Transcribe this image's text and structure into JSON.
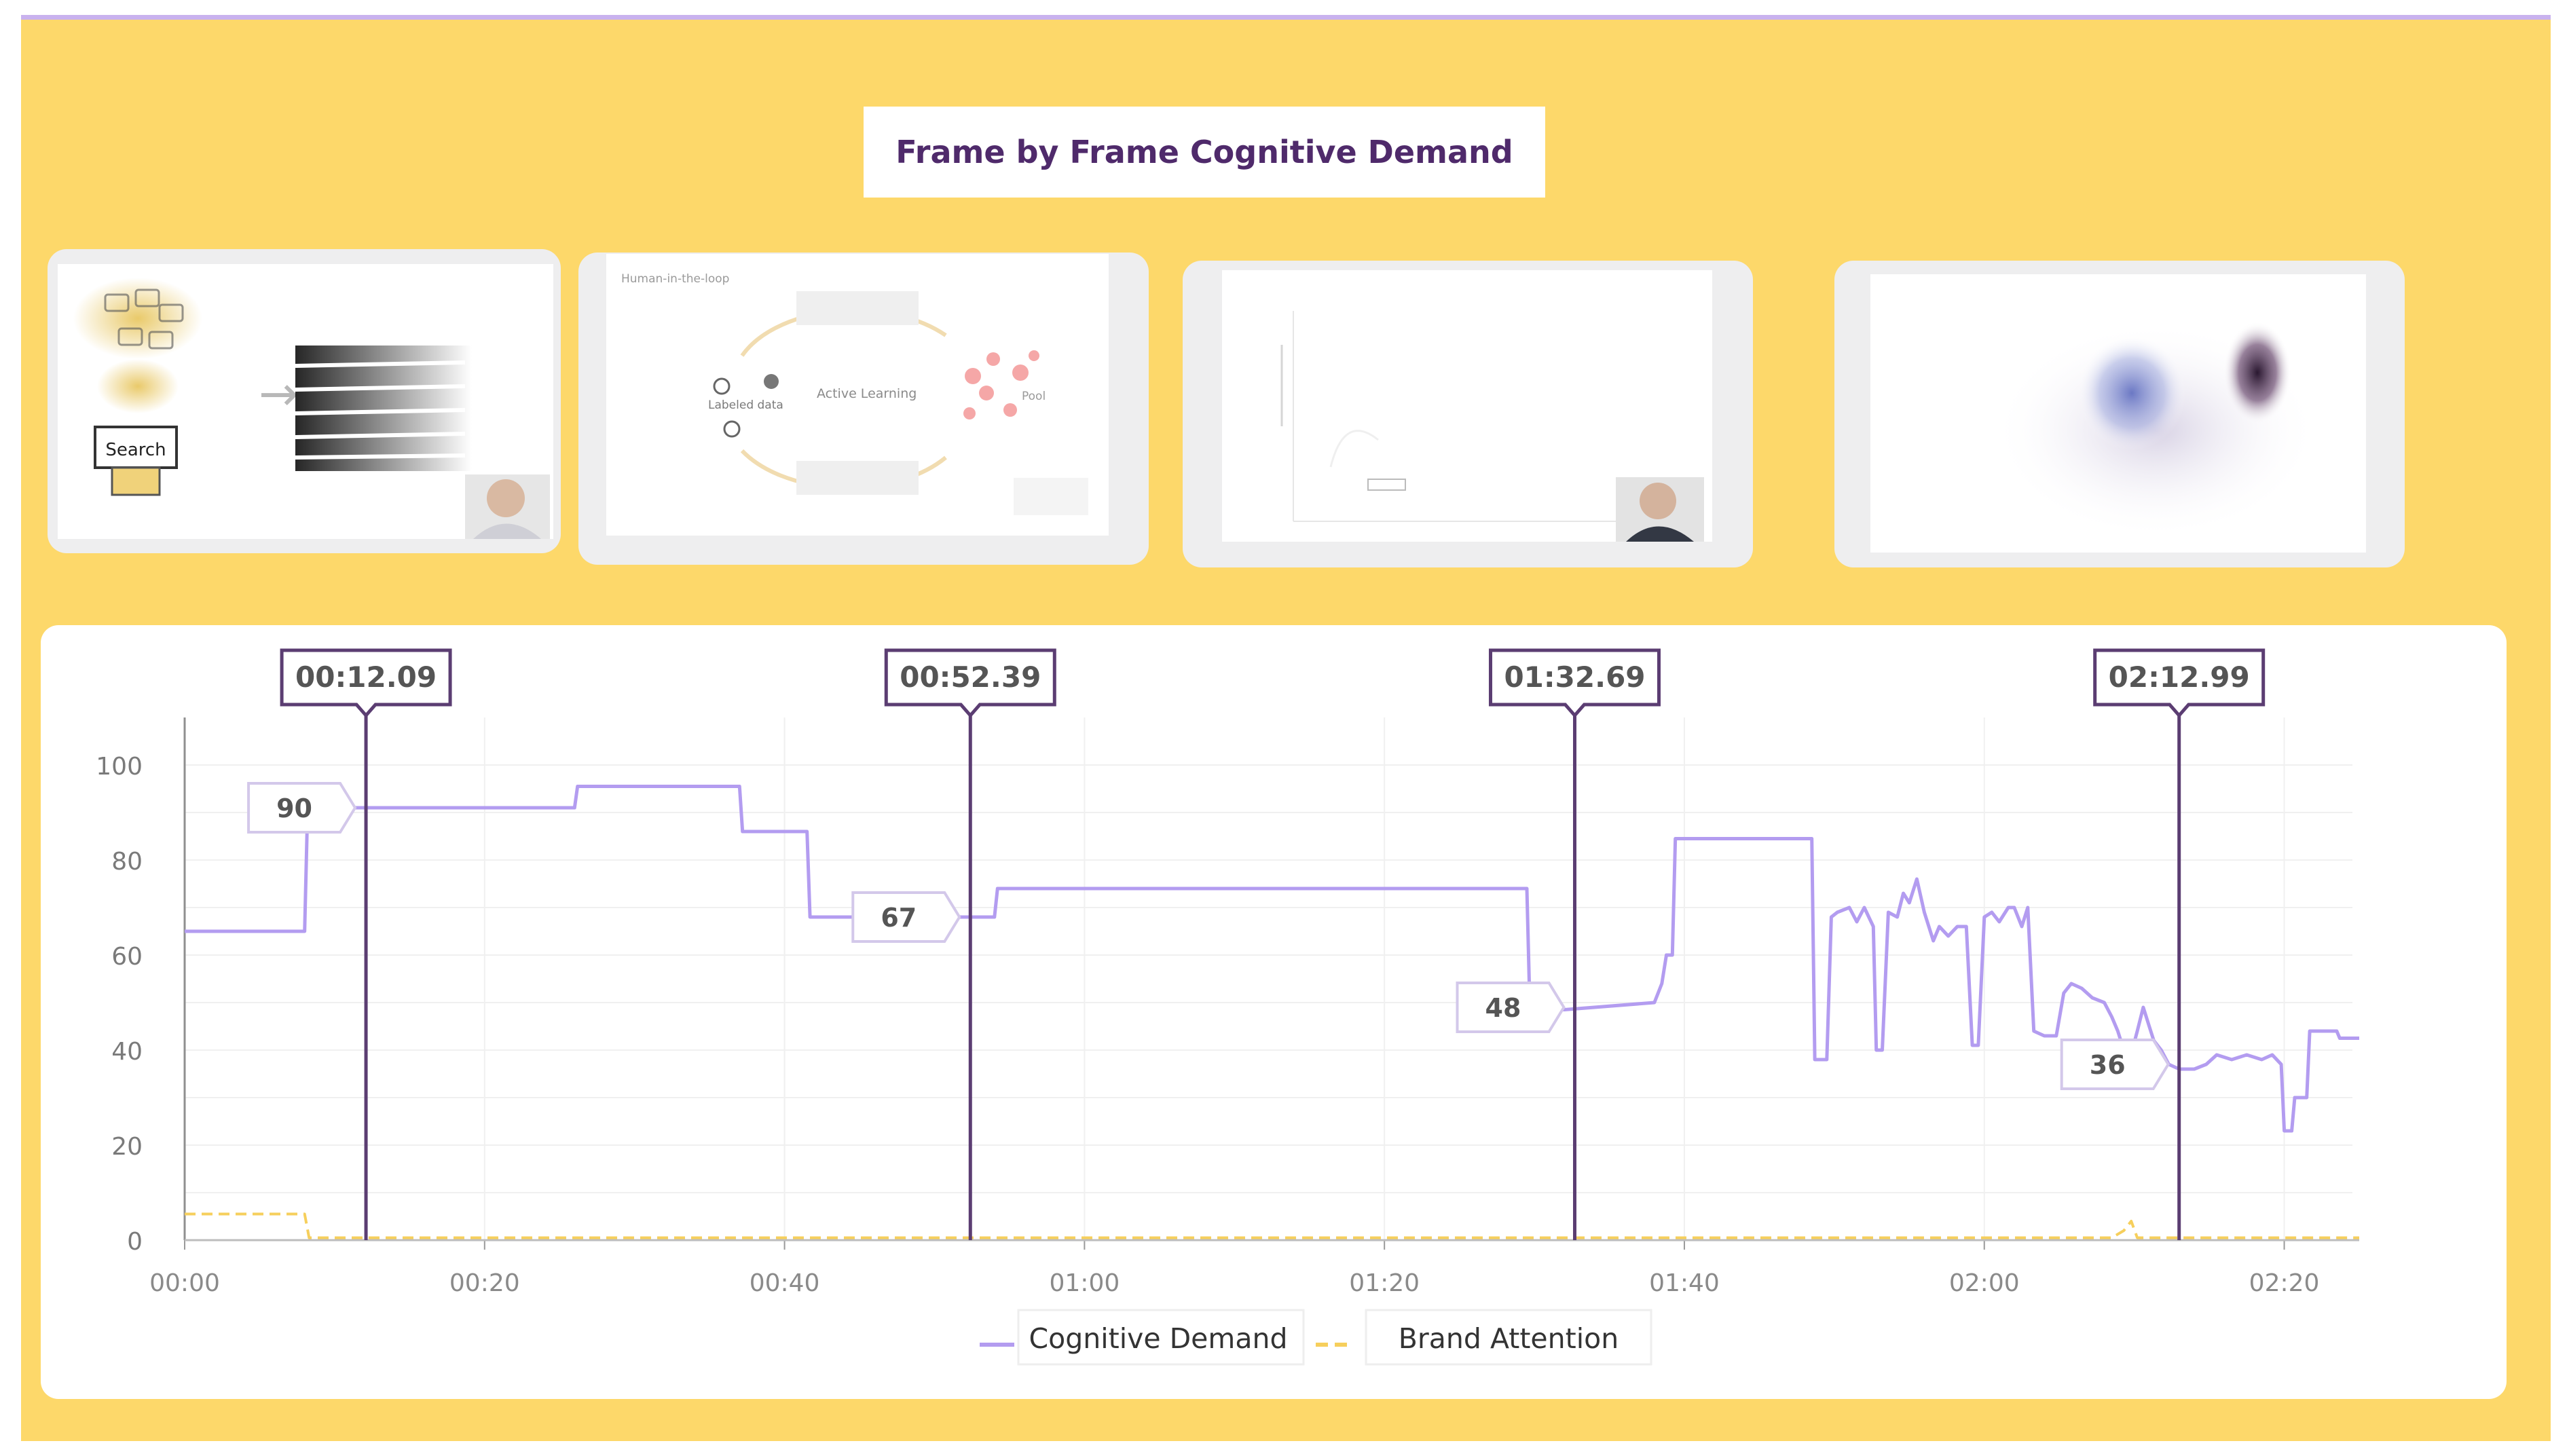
{
  "header": {
    "title": "Frame by Frame Cognitive Demand"
  },
  "frames": [
    {
      "name": "frame-thumbnail-1",
      "label": "Search"
    },
    {
      "name": "frame-thumbnail-2",
      "label_title": "Human-in-the-loop",
      "label_center": "Active Learning",
      "label_left": "Labeled data",
      "label_right": "Pool"
    },
    {
      "name": "frame-thumbnail-3"
    },
    {
      "name": "frame-thumbnail-4"
    }
  ],
  "colors": {
    "background": "#fdd86a",
    "cognitive": "#b39cf0",
    "brand": "#f6cf5c",
    "marker": "#5b3d72",
    "title": "#4f2a6b"
  },
  "chart_data": {
    "type": "line",
    "xlabel": "",
    "ylabel": "",
    "xlim": [
      0,
      145
    ],
    "ylim": [
      0,
      100
    ],
    "x_ticks": [
      0,
      20,
      40,
      60,
      80,
      100,
      120,
      140
    ],
    "x_tick_labels": [
      "00:00",
      "00:20",
      "00:40",
      "01:00",
      "01:20",
      "01:40",
      "02:00",
      "02:20"
    ],
    "y_ticks": [
      0,
      20,
      40,
      60,
      80,
      100
    ],
    "y_tick_labels": [
      "0",
      "20",
      "40",
      "60",
      "80",
      "100"
    ],
    "grid": true,
    "legend_position": "bottom-center",
    "series": [
      {
        "name": "Cognitive Demand",
        "style": "solid",
        "points": [
          [
            0,
            65
          ],
          [
            8,
            65
          ],
          [
            8.2,
            91
          ],
          [
            10,
            91
          ],
          [
            12,
            91
          ],
          [
            26,
            91
          ],
          [
            26.2,
            95.5
          ],
          [
            37,
            95.5
          ],
          [
            37.2,
            86
          ],
          [
            41.5,
            86
          ],
          [
            41.7,
            68
          ],
          [
            44,
            68
          ],
          [
            52,
            68
          ],
          [
            54,
            68
          ],
          [
            54.2,
            74
          ],
          [
            89.5,
            74
          ],
          [
            89.7,
            49
          ],
          [
            91,
            48.5
          ],
          [
            92,
            48.5
          ],
          [
            98,
            50
          ],
          [
            98.5,
            54
          ],
          [
            98.8,
            60
          ],
          [
            99.2,
            60
          ],
          [
            99.4,
            84.5
          ],
          [
            108.5,
            84.5
          ],
          [
            108.7,
            38
          ],
          [
            109.5,
            38
          ],
          [
            109.8,
            68
          ],
          [
            110.2,
            69
          ],
          [
            111,
            70
          ],
          [
            111.5,
            67
          ],
          [
            112,
            70
          ],
          [
            112.6,
            66
          ],
          [
            112.8,
            40
          ],
          [
            113.2,
            40
          ],
          [
            113.6,
            69
          ],
          [
            114.2,
            68
          ],
          [
            114.6,
            73
          ],
          [
            115,
            71
          ],
          [
            115.5,
            76
          ],
          [
            116,
            69
          ],
          [
            116.6,
            63
          ],
          [
            117,
            66
          ],
          [
            117.6,
            64
          ],
          [
            118.2,
            66
          ],
          [
            118.8,
            66
          ],
          [
            119.2,
            41
          ],
          [
            119.6,
            41
          ],
          [
            120,
            68
          ],
          [
            120.5,
            69
          ],
          [
            121,
            67
          ],
          [
            121.6,
            70
          ],
          [
            122,
            70
          ],
          [
            122.5,
            66
          ],
          [
            122.9,
            70
          ],
          [
            123.3,
            44
          ],
          [
            124,
            43
          ],
          [
            124.8,
            43
          ],
          [
            125.3,
            52
          ],
          [
            125.8,
            54
          ],
          [
            126.5,
            53
          ],
          [
            127.2,
            51
          ],
          [
            128,
            50
          ],
          [
            128.5,
            47
          ],
          [
            128.9,
            44
          ],
          [
            129.3,
            40
          ],
          [
            129.7,
            38
          ],
          [
            130.2,
            44
          ],
          [
            130.6,
            49
          ],
          [
            131,
            45
          ],
          [
            131.3,
            42
          ],
          [
            131.8,
            40
          ],
          [
            132.3,
            37
          ],
          [
            133,
            36
          ],
          [
            134,
            36
          ],
          [
            134.8,
            37
          ],
          [
            135.5,
            39
          ],
          [
            136.5,
            38
          ],
          [
            137.5,
            39
          ],
          [
            138.5,
            38
          ],
          [
            139.2,
            39
          ],
          [
            139.8,
            37
          ],
          [
            140,
            23
          ],
          [
            140.5,
            23
          ],
          [
            140.7,
            30
          ],
          [
            141.5,
            30
          ],
          [
            141.7,
            44
          ],
          [
            143.5,
            44
          ],
          [
            143.7,
            42.5
          ],
          [
            145,
            42.5
          ]
        ]
      },
      {
        "name": "Brand Attention",
        "style": "dashed",
        "points": [
          [
            0,
            5.5
          ],
          [
            8,
            5.5
          ],
          [
            8.3,
            0.5
          ],
          [
            128.5,
            0.5
          ],
          [
            129.3,
            2
          ],
          [
            129.8,
            4
          ],
          [
            130.2,
            0.5
          ],
          [
            145,
            0.5
          ]
        ]
      }
    ],
    "markers": [
      {
        "time_seconds": 12.09,
        "label": "00:12.09",
        "value": 90
      },
      {
        "time_seconds": 52.39,
        "label": "00:52.39",
        "value": 67
      },
      {
        "time_seconds": 92.69,
        "label": "01:32.69",
        "value": 48
      },
      {
        "time_seconds": 132.99,
        "label": "02:12.99",
        "value": 36
      }
    ]
  }
}
